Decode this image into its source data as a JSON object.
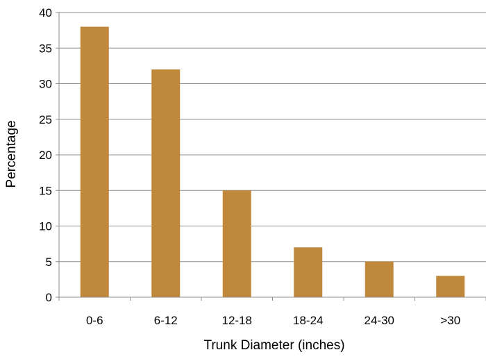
{
  "chart_data": {
    "type": "bar",
    "categories": [
      "0-6",
      "6-12",
      "12-18",
      "18-24",
      "24-30",
      ">30"
    ],
    "values": [
      38,
      32,
      15,
      7,
      5,
      3
    ],
    "xlabel": "Trunk Diameter (inches)",
    "ylabel": "Percentage",
    "ylim": [
      0,
      40
    ],
    "yticks": [
      "0",
      "5",
      "10",
      "15",
      "20",
      "25",
      "30",
      "35",
      "40"
    ],
    "grid": true,
    "bar_color": "#C0883A",
    "grid_color": "#8C8C8C"
  }
}
